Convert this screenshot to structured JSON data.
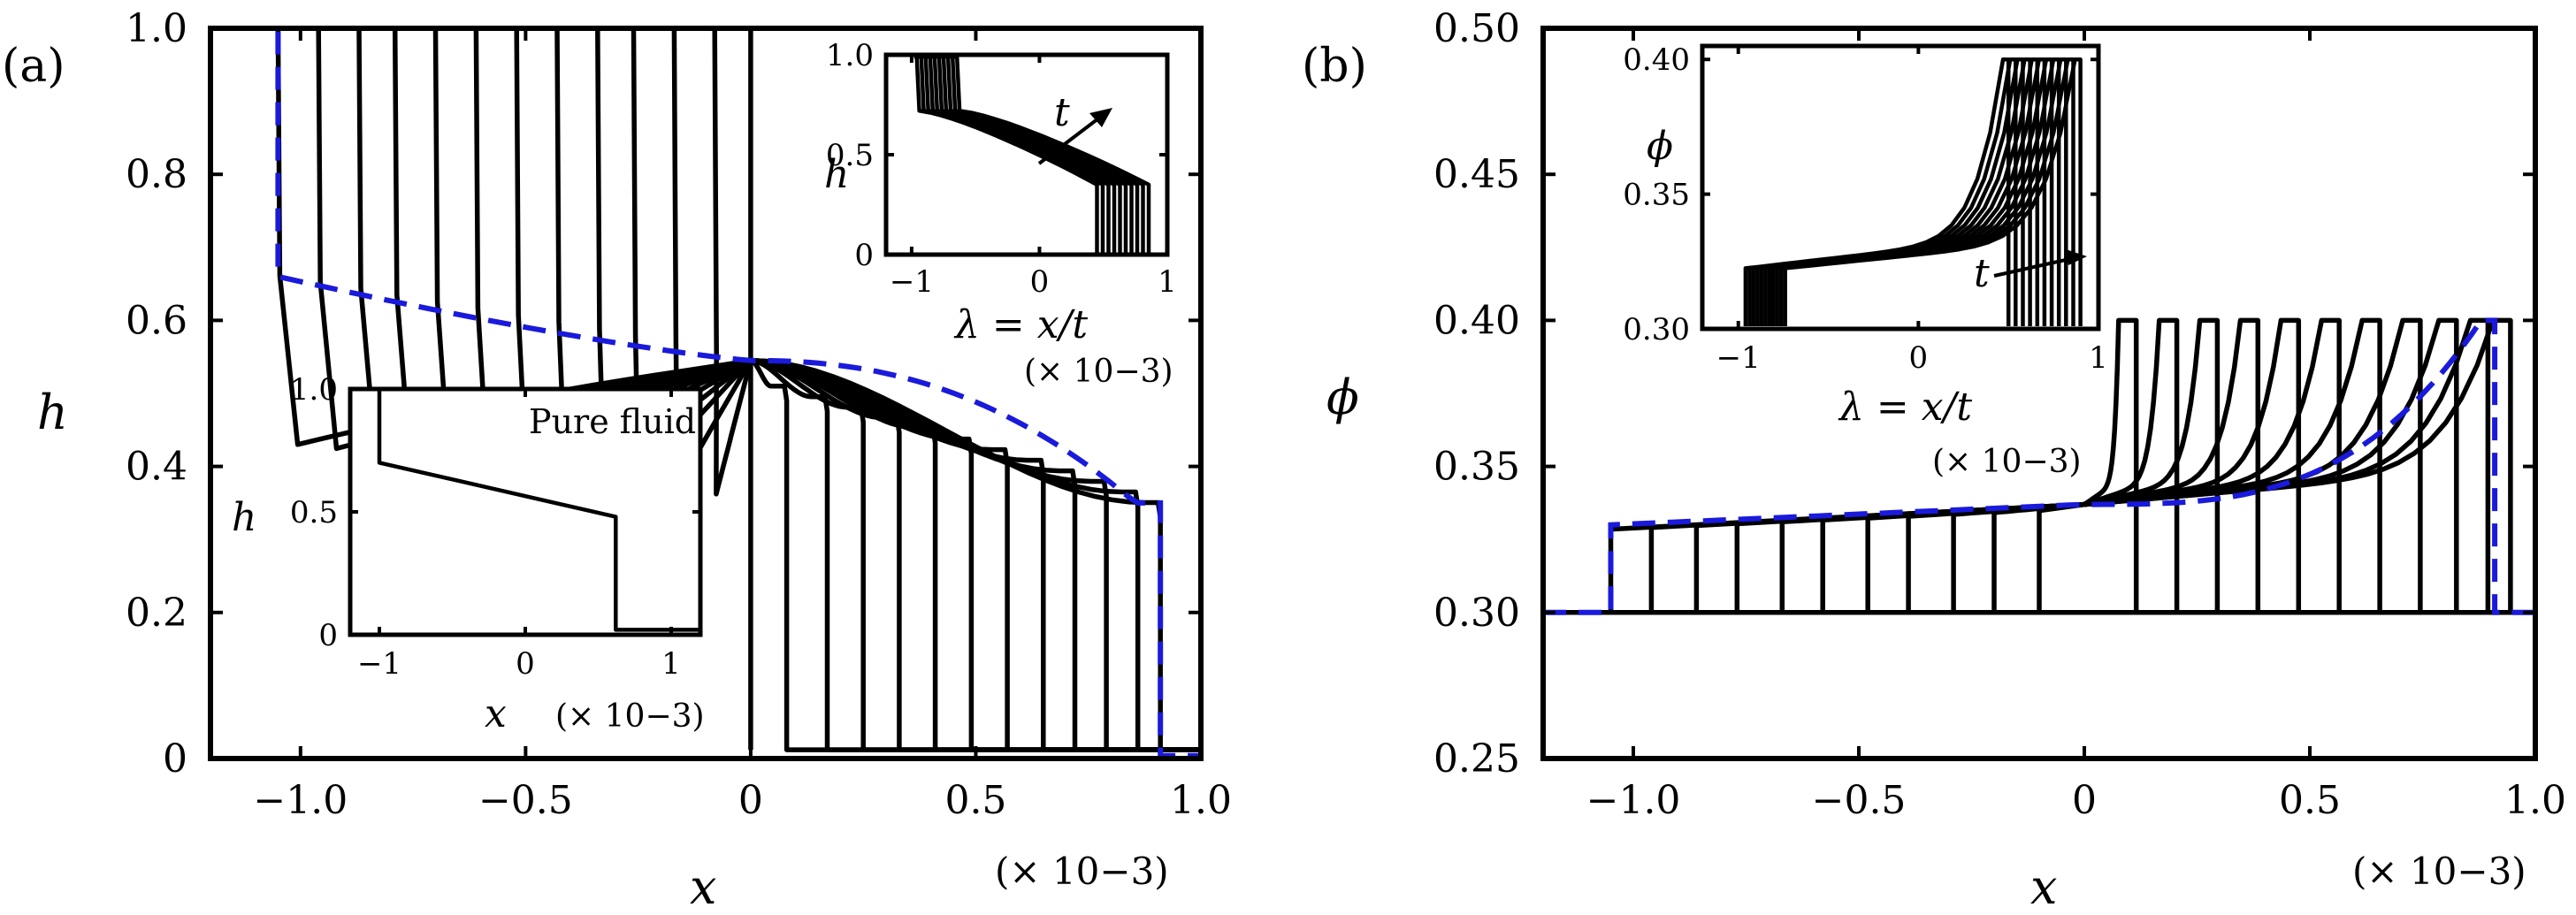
{
  "panel_a": {
    "label": "(a)",
    "xlabel": "x",
    "ylabel": "h",
    "x_ticks": [
      "−1.0",
      "−0.5",
      "0",
      "0.5",
      "1.0"
    ],
    "y_ticks": [
      "0",
      "0.2",
      "0.4",
      "0.6",
      "0.8",
      "1.0"
    ],
    "x_scale": "(× 10−3)",
    "inset_right": {
      "xlabel": "λ = x/t",
      "ylabel": "h",
      "x_ticks": [
        "−1",
        "0",
        "1"
      ],
      "y_ticks": [
        "0",
        "0.5",
        "1.0"
      ],
      "x_scale": "(× 10−3)",
      "arrow_label": "t"
    },
    "inset_left": {
      "title": "Pure fluid",
      "xlabel": "x",
      "ylabel": "h",
      "x_ticks": [
        "−1",
        "0",
        "1"
      ],
      "y_ticks": [
        "0",
        "0.5",
        "1.0"
      ],
      "x_scale": "(× 10−3)"
    }
  },
  "panel_b": {
    "label": "(b)",
    "xlabel": "x",
    "ylabel": "ϕ",
    "x_ticks": [
      "−1.0",
      "−0.5",
      "0",
      "0.5",
      "1.0"
    ],
    "y_ticks": [
      "0.25",
      "0.30",
      "0.35",
      "0.40",
      "0.45",
      "0.50"
    ],
    "x_scale": "(× 10−3)",
    "inset": {
      "xlabel": "λ = x/t",
      "ylabel": "ϕ",
      "x_ticks": [
        "−1",
        "0",
        "1"
      ],
      "y_ticks": [
        "0.30",
        "0.35",
        "0.40"
      ],
      "x_scale": "(× 10−3)",
      "arrow_label": "t"
    }
  },
  "chart_data": [
    {
      "type": "line",
      "panel": "a",
      "xlim": [
        -1.2,
        1.0
      ],
      "ylim": [
        0,
        1.0
      ],
      "x_scale_factor": "1e-3",
      "curve_fronts_left": [
        -1.05,
        -0.96,
        -0.87,
        -0.79,
        -0.7,
        -0.61,
        -0.52,
        -0.43,
        -0.34,
        -0.26,
        -0.17,
        -0.08
      ],
      "curve_fronts_right": [
        0.08,
        0.17,
        0.25,
        0.33,
        0.41,
        0.49,
        0.57,
        0.65,
        0.72,
        0.79,
        0.86,
        0.91
      ],
      "similarity_solution": {
        "h_left_plateau": 1.0,
        "h_left_front": 0.66,
        "x_left_front": -1.05,
        "h_at_origin": 0.545,
        "h_right_plateau": 0.35,
        "x_right_front": 0.91,
        "h_downstream": 0.0
      },
      "grid": false
    },
    {
      "type": "line",
      "panel": "a-inset-right",
      "xlim": [
        -1.2,
        1.0
      ],
      "ylim": [
        0,
        1.0
      ],
      "xlabel": "λ = x/t"
    },
    {
      "type": "line",
      "panel": "a-inset-left",
      "title": "Pure fluid",
      "xlim": [
        -1.2,
        1.2
      ],
      "ylim": [
        0,
        1.0
      ],
      "profile": {
        "x": [
          -1.2,
          -1.0,
          -1.0,
          0.62,
          0.62,
          1.2
        ],
        "h": [
          1.0,
          1.0,
          0.7,
          0.48,
          0.02,
          0.02
        ]
      }
    },
    {
      "type": "line",
      "panel": "b",
      "xlim": [
        -1.2,
        1.0
      ],
      "ylim": [
        0.25,
        0.5
      ],
      "x_scale_factor": "1e-3",
      "curve_fronts_left": [
        -1.05,
        -0.96,
        -0.86,
        -0.77,
        -0.67,
        -0.58,
        -0.48,
        -0.39,
        -0.29,
        -0.2,
        -0.1
      ],
      "curve_fronts_right": [
        0.08,
        0.17,
        0.26,
        0.35,
        0.44,
        0.53,
        0.62,
        0.71,
        0.79,
        0.86,
        0.91
      ],
      "similarity_solution": {
        "phi_ambient": 0.3,
        "phi_left_front": 0.33,
        "phi_at_origin": 0.337,
        "phi_max": 0.4,
        "x_left_front": -1.05,
        "x_right_front": 0.91
      },
      "grid": false
    },
    {
      "type": "line",
      "panel": "b-inset",
      "xlim": [
        -1.2,
        1.0
      ],
      "ylim": [
        0.3,
        0.405
      ],
      "xlabel": "λ = x/t"
    }
  ]
}
